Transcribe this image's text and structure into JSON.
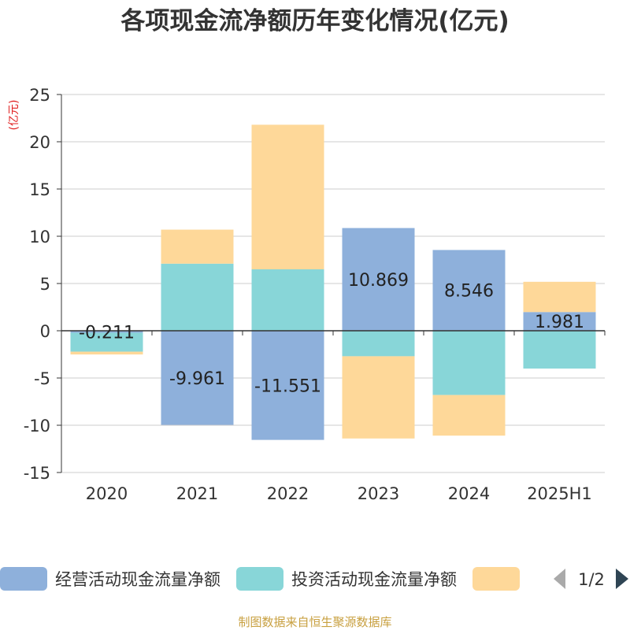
{
  "chart_data": {
    "type": "bar",
    "stacked": true,
    "title": "各项现金流净额历年变化情况(亿元)",
    "ylabel": "(亿元)",
    "xlabel": "",
    "categories": [
      "2020",
      "2021",
      "2022",
      "2023",
      "2024",
      "2025H1"
    ],
    "ylim": [
      -15,
      25
    ],
    "yticks": [
      25,
      20,
      15,
      10,
      5,
      0,
      -5,
      -10,
      -15
    ],
    "grid": true,
    "legend_position": "bottom",
    "series": [
      {
        "name": "经营活动现金流量净额",
        "color": "#8eb0db",
        "values": [
          -0.211,
          -9.961,
          -11.551,
          10.869,
          8.546,
          1.981
        ],
        "data_labels": [
          "-0.211",
          "-9.961",
          "-11.551",
          "10.869",
          "8.546",
          "1.981"
        ]
      },
      {
        "name": "投资活动现金流量净额",
        "color": "#88d6d8",
        "values": [
          -2.0,
          7.1,
          6.5,
          -2.7,
          -6.8,
          -4.0
        ]
      },
      {
        "color": "#fed899",
        "values": [
          -0.3,
          3.6,
          15.3,
          -8.7,
          -4.3,
          3.2
        ]
      }
    ]
  },
  "legend": {
    "page_indicator": "1/2"
  },
  "footer": {
    "source": "制图数据来自恒生聚源数据库"
  },
  "colors": {
    "title": "#333333",
    "ylabel": "#e02020",
    "axis": "#333333",
    "grid": "#cccccc",
    "footer": "#c8a040",
    "pager_inactive": "#aaaaaa",
    "pager_active": "#2f4554"
  }
}
